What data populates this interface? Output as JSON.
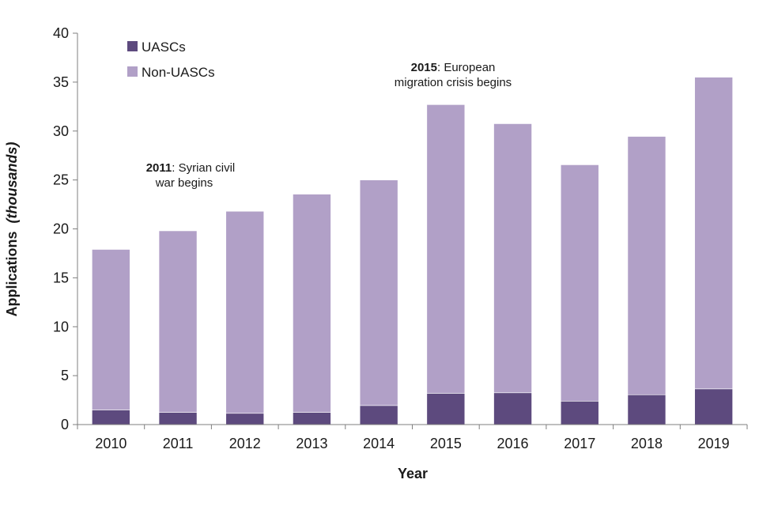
{
  "chart_data": {
    "type": "bar",
    "stacked": true,
    "title": "",
    "xlabel": "Year",
    "ylabel_main": "Applications",
    "ylabel_italic": "(thousands)",
    "ylim": [
      0,
      40
    ],
    "yticks": [
      0,
      5,
      10,
      15,
      20,
      25,
      30,
      35,
      40
    ],
    "categories": [
      "2010",
      "2011",
      "2012",
      "2013",
      "2014",
      "2015",
      "2016",
      "2017",
      "2018",
      "2019"
    ],
    "series": [
      {
        "name": "UASCs",
        "color": "#5d4a7e",
        "values": [
          1.5,
          1.25,
          1.15,
          1.25,
          1.95,
          3.2,
          3.25,
          2.4,
          3.05,
          3.65
        ]
      },
      {
        "name": "Non-UASCs",
        "color": "#b1a0c7",
        "values": [
          16.4,
          18.55,
          20.65,
          22.3,
          23.05,
          29.5,
          27.5,
          24.15,
          26.4,
          31.85
        ]
      }
    ],
    "legend_position": "top-left",
    "grid": false,
    "annotations": [
      {
        "id": "ann-2011",
        "category": "2011",
        "bold": "2011",
        "line1_rest": ": Syrian civil",
        "line2": "war begins"
      },
      {
        "id": "ann-2015",
        "category": "2015",
        "bold": "2015",
        "line1_rest": ": European",
        "line2": "migration crisis begins"
      }
    ]
  }
}
